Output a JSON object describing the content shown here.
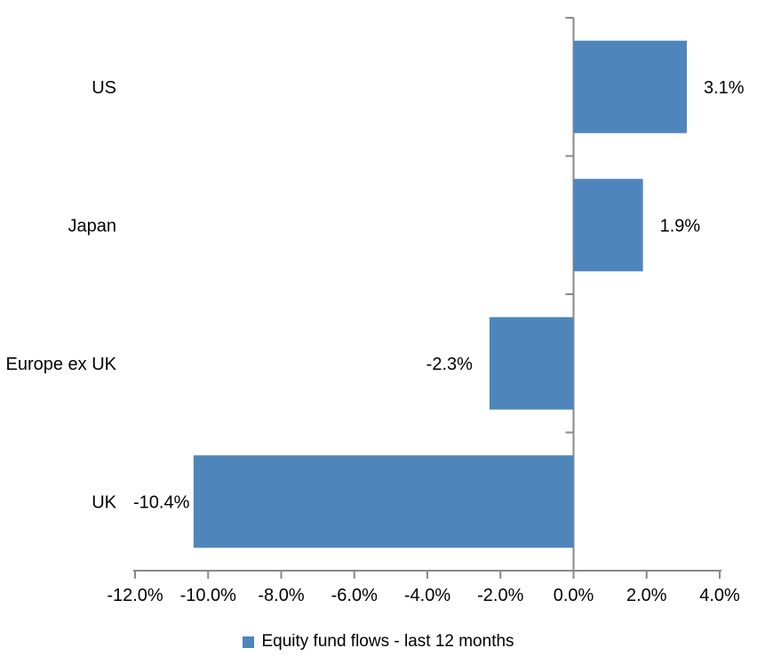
{
  "chart_data": {
    "type": "bar",
    "orientation": "horizontal",
    "title": "",
    "xlabel": "",
    "ylabel": "",
    "categories": [
      "US",
      "Japan",
      "Europe ex UK",
      "UK"
    ],
    "series": [
      {
        "name": "Equity fund flows - last 12 months",
        "values": [
          3.1,
          1.9,
          -2.3,
          -10.4
        ]
      }
    ],
    "data_labels": [
      "3.1%",
      "1.9%",
      "-2.3%",
      "-10.4%"
    ],
    "x_tick_values": [
      -12,
      -10,
      -8,
      -6,
      -4,
      -2,
      0,
      2,
      4
    ],
    "x_tick_labels": [
      "-12.0%",
      "-10.0%",
      "-8.0%",
      "-6.0%",
      "-4.0%",
      "-2.0%",
      "0.0%",
      "2.0%",
      "4.0%"
    ],
    "xlim": [
      -12,
      4
    ],
    "grid": false,
    "legend": {
      "position": "bottom",
      "label": "Equity fund flows - last 12 months"
    },
    "colors": {
      "bar": "#4E86BC",
      "axis": "#898989",
      "text": "#000000",
      "background": "#FFFFFF"
    }
  }
}
